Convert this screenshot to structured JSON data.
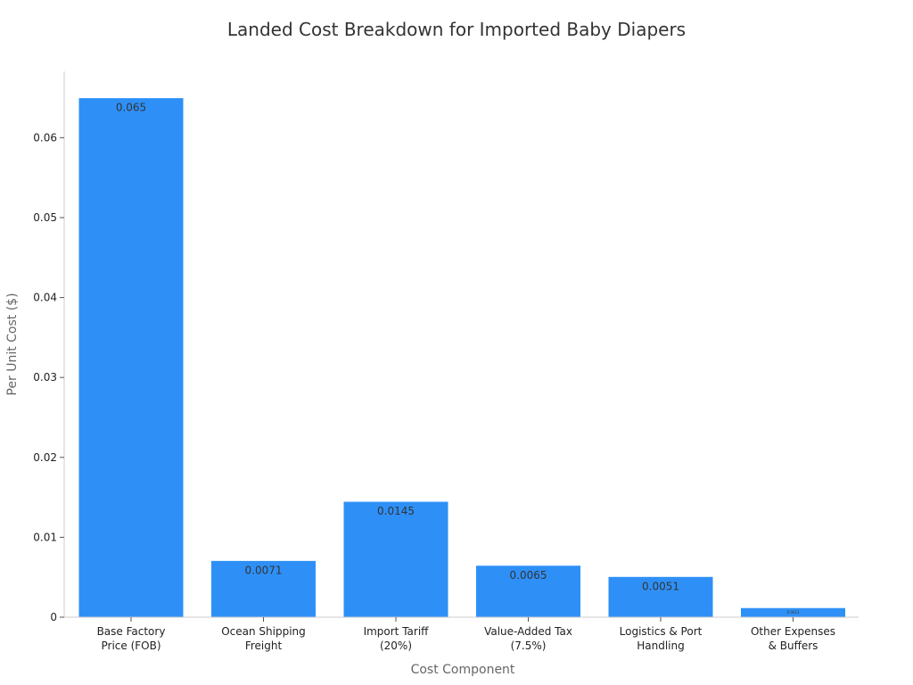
{
  "chart_data": {
    "type": "bar",
    "title": "Landed Cost Breakdown for Imported Baby Diapers",
    "xlabel": "Cost Component",
    "ylabel": "Per Unit Cost ($)",
    "categories": [
      [
        "Base Factory",
        "Price (FOB)"
      ],
      [
        "Ocean Shipping",
        "Freight"
      ],
      [
        "Import Tariff",
        "(20%)"
      ],
      [
        "Value-Added Tax",
        "(7.5%)"
      ],
      [
        "Logistics & Port",
        "Handling"
      ],
      [
        "Other Expenses",
        "& Buffers"
      ]
    ],
    "values": [
      0.065,
      0.0071,
      0.0145,
      0.0065,
      0.0051,
      0.0012
    ],
    "data_labels": [
      "0.065",
      "0.0071",
      "0.0145",
      "0.0065",
      "0.0051",
      "0.0012"
    ],
    "yticks": [
      0,
      0.01,
      0.02,
      0.03,
      0.04,
      0.05,
      0.06
    ],
    "ytick_labels": [
      "0",
      "0.01",
      "0.02",
      "0.03",
      "0.04",
      "0.05",
      "0.06"
    ],
    "ylim": [
      0,
      0.0683
    ],
    "grid": false,
    "bar_color": "#2e90f7",
    "axis_color": "#cccccc"
  }
}
